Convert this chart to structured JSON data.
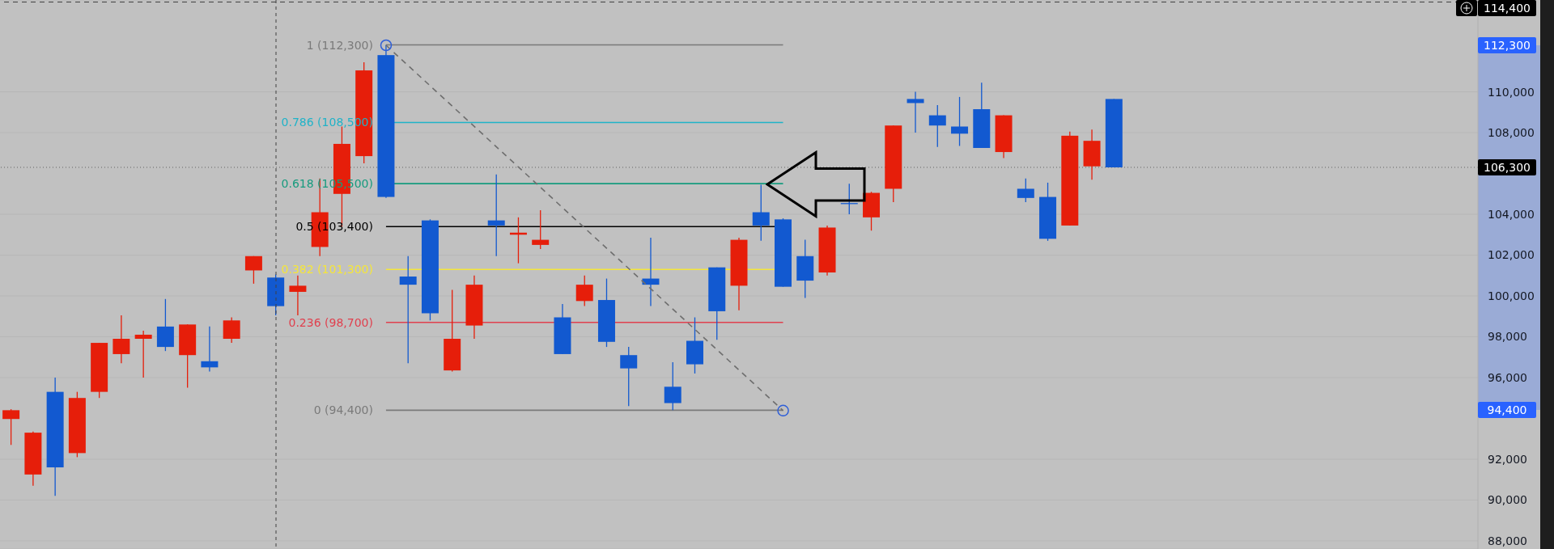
{
  "chart_data": {
    "type": "candlestick",
    "categories": [
      null,
      null,
      null,
      null,
      null,
      null,
      null,
      null,
      null,
      null,
      null,
      null,
      null,
      null,
      null,
      null,
      null,
      null,
      null,
      null,
      null,
      null,
      null,
      null,
      null,
      null,
      null,
      null,
      null,
      null,
      null,
      null,
      null,
      null,
      null,
      null,
      null,
      null,
      null,
      null,
      null,
      null,
      null,
      null,
      null,
      null,
      null,
      null,
      null,
      null,
      null,
      null,
      null,
      null,
      null,
      null,
      null,
      null,
      null,
      null,
      null,
      null,
      null,
      null,
      null,
      null,
      null
    ],
    "ohlc": [
      [
        93970,
        94450,
        92700,
        94400
      ],
      [
        91250,
        93350,
        90700,
        93300
      ],
      [
        95300,
        96000,
        90200,
        91600
      ],
      [
        92300,
        95300,
        92100,
        95000
      ],
      [
        95300,
        97700,
        95000,
        97700
      ],
      [
        97150,
        99050,
        96700,
        97900
      ],
      [
        97900,
        98300,
        96000,
        98100
      ],
      [
        98500,
        99850,
        97300,
        97500
      ],
      [
        97100,
        98600,
        95500,
        98600
      ],
      [
        96800,
        98500,
        96300,
        96500
      ],
      [
        97900,
        98950,
        97700,
        98800
      ],
      [
        101250,
        101950,
        100600,
        101950
      ],
      [
        100900,
        101050,
        99050,
        99500
      ],
      [
        100200,
        101000,
        99050,
        100500
      ],
      [
        102400,
        105750,
        101950,
        104100
      ],
      [
        105000,
        108300,
        103400,
        107450
      ],
      [
        106850,
        111450,
        106500,
        111050
      ],
      [
        111800,
        112300,
        104800,
        104850
      ],
      [
        100950,
        101950,
        96700,
        100550
      ],
      [
        103700,
        103750,
        98800,
        99150
      ],
      [
        96350,
        100300,
        96300,
        97900
      ],
      [
        98550,
        101000,
        97900,
        100550
      ],
      [
        103700,
        105950,
        101950,
        103450
      ],
      [
        103000,
        103850,
        101600,
        103100
      ],
      [
        102500,
        104200,
        102300,
        102750
      ],
      [
        98950,
        99600,
        97150,
        97150
      ],
      [
        99750,
        101000,
        99500,
        100550
      ],
      [
        99800,
        100850,
        97500,
        97750
      ],
      [
        97100,
        97500,
        94600,
        96450
      ],
      [
        100850,
        102850,
        99500,
        100550
      ],
      [
        95550,
        96750,
        94400,
        94750
      ],
      [
        97800,
        98950,
        96200,
        96650
      ],
      [
        101400,
        101400,
        97850,
        99250
      ],
      [
        100500,
        102850,
        99300,
        102750
      ],
      [
        104100,
        105450,
        102700,
        103450
      ],
      [
        103750,
        103800,
        100450,
        100450
      ],
      [
        101950,
        102750,
        99900,
        100750
      ],
      [
        101150,
        103450,
        101000,
        103350
      ],
      [
        104550,
        105500,
        104000,
        104500
      ],
      [
        103850,
        105100,
        103200,
        105050
      ],
      [
        105250,
        108350,
        104600,
        108350
      ],
      [
        109650,
        110000,
        108000,
        109450
      ],
      [
        108850,
        109350,
        107300,
        108350
      ],
      [
        108300,
        109750,
        107350,
        107950
      ],
      [
        109150,
        110450,
        107250,
        107250
      ],
      [
        107050,
        108850,
        106750,
        108850
      ],
      [
        105250,
        105750,
        104600,
        104800
      ],
      [
        104850,
        105550,
        102700,
        102800
      ],
      [
        103450,
        108050,
        103450,
        107850
      ],
      [
        106350,
        108150,
        105700,
        107600
      ],
      [
        109650,
        109650,
        106300,
        106300
      ],
      null,
      null,
      null,
      null,
      null,
      null,
      null,
      null,
      null,
      null,
      null,
      null,
      null,
      null,
      null,
      null
    ],
    "colors": [
      "#e61e0a",
      "#e61e0a",
      "#1259d0",
      "#e61e0a",
      "#e61e0a",
      "#e61e0a",
      "#e61e0a",
      "#1259d0",
      "#e61e0a",
      "#1259d0",
      "#e61e0a",
      "#e61e0a",
      "#1259d0",
      "#e61e0a",
      "#e61e0a",
      "#e61e0a",
      "#e61e0a",
      "#1259d0",
      "#1259d0",
      "#1259d0",
      "#e61e0a",
      "#e61e0a",
      "#1259d0",
      "#e61e0a",
      "#e61e0a",
      "#1259d0",
      "#e61e0a",
      "#1259d0",
      "#1259d0",
      "#1259d0",
      "#1259d0",
      "#1259d0",
      "#1259d0",
      "#e61e0a",
      "#1259d0",
      "#1259d0",
      "#1259d0",
      "#e61e0a",
      "#1259d0",
      "#e61e0a",
      "#e61e0a",
      "#1259d0",
      "#1259d0",
      "#1259d0",
      "#1259d0",
      "#e61e0a",
      "#1259d0",
      "#1259d0",
      "#e61e0a",
      "#e61e0a",
      "#1259d0",
      null,
      null,
      null,
      null,
      null,
      null,
      null,
      null,
      null,
      null,
      null,
      null,
      null,
      null,
      null,
      null
    ],
    "ylim": [
      87600,
      114500
    ],
    "yticks": [
      {
        "value": 88000,
        "label": "88,000"
      },
      {
        "value": 90000,
        "label": "90,000"
      },
      {
        "value": 92000,
        "label": "92,000"
      },
      {
        "value": 96000,
        "label": "96,000"
      },
      {
        "value": 98000,
        "label": "98,000"
      },
      {
        "value": 100000,
        "label": "100,000"
      },
      {
        "value": 102000,
        "label": "102,000"
      },
      {
        "value": 104000,
        "label": "104,000"
      },
      {
        "value": 108000,
        "label": "108,000"
      },
      {
        "value": 110000,
        "label": "110,000"
      }
    ],
    "tick_labels": "y",
    "grid": "y",
    "ref_lines": [
      {
        "axis": "y",
        "value": 112300,
        "label": "1 (112,300)",
        "color": "#7a7a7a",
        "line_style": "solid"
      },
      {
        "axis": "y",
        "value": 108500,
        "label": "0.786 (108,500)",
        "color": "#1fb3c8",
        "line_style": "solid"
      },
      {
        "axis": "y",
        "value": 105500,
        "label": "0.618 (105,500)",
        "color": "#169b7e",
        "line_style": "solid"
      },
      {
        "axis": "y",
        "value": 103400,
        "label": "0.5 (103,400)",
        "color": "#000000",
        "line_style": "solid"
      },
      {
        "axis": "y",
        "value": 101300,
        "label": "0.382 (101,300)",
        "color": "#f5e63a",
        "line_style": "solid"
      },
      {
        "axis": "y",
        "value": 98700,
        "label": "0.236 (98,700)",
        "color": "#e0404e",
        "line_style": "solid"
      },
      {
        "axis": "y",
        "value": 94400,
        "label": "0 (94,400)",
        "color": "#7a7a7a",
        "line_style": "solid"
      },
      {
        "axis": "y",
        "value": 114400,
        "label": "114,400",
        "color": "#404040",
        "line_style": "dashed"
      },
      {
        "axis": "y",
        "value": 106300,
        "label": "106,300",
        "color": "#606060",
        "line_style": "dotted"
      }
    ],
    "annotations": [
      "112,300",
      "94,400"
    ]
  }
}
